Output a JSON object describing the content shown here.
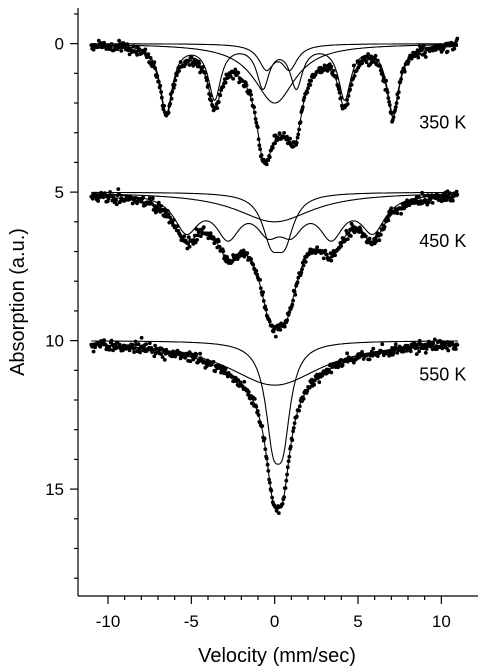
{
  "chart_data": {
    "type": "scatter",
    "xlabel": "Velocity (mm/sec)",
    "ylabel": "Absorption (a.u.)",
    "xlim": [
      -11.8,
      12.2
    ],
    "ylim": [
      18.6,
      -1.2
    ],
    "y_inverted": true,
    "x_ticks": [
      -10,
      -5,
      0,
      5,
      10
    ],
    "x_tick_labels": [
      "-10",
      "-5",
      "0",
      "5",
      "10"
    ],
    "y_ticks": [
      0,
      5,
      10,
      15
    ],
    "y_tick_labels": [
      "0",
      "5",
      "10",
      "15"
    ],
    "series": [
      {
        "name": "350 K",
        "label": "350 K",
        "label_anchor": [
          11.5,
          2.85
        ],
        "baseline": 0,
        "sextet": {
          "center": 0.3,
          "splits": [
            6.8,
            3.9,
            1.0
          ],
          "depths": [
            2.3,
            1.8,
            1.4
          ],
          "width": 0.45
        },
        "doublet": {
          "center": 0.2,
          "halfsplit": 0.7,
          "depth": 1.6,
          "width": 0.55
        },
        "extra_profile": {
          "center": 0.0,
          "depth": 2.0,
          "width": 1.5
        },
        "data_x_range": [
          -11,
          11
        ]
      },
      {
        "name": "450 K",
        "label": "450 K",
        "label_anchor": [
          11.5,
          6.85
        ],
        "baseline": 5,
        "sextet": {
          "center": 0.3,
          "splits": [
            5.6,
            3.1,
            0.7
          ],
          "depths": [
            1.2,
            1.3,
            1.0
          ],
          "width": 0.9
        },
        "doublet": {
          "center": 0.2,
          "halfsplit": 0.4,
          "depth": 2.8,
          "width": 0.65
        },
        "extra_profile": {
          "center": 0.0,
          "depth": 1.0,
          "width": 2.8
        },
        "data_x_range": [
          -11,
          11
        ]
      },
      {
        "name": "550 K",
        "label": "550 K",
        "label_anchor": [
          11.5,
          11.35
        ],
        "baseline": 10,
        "doublet": {
          "center": 0.2,
          "halfsplit": 0.3,
          "depth": 5.4,
          "width": 0.55
        },
        "extra_profile": {
          "center": 0.0,
          "depth": 1.5,
          "width": 3.5
        },
        "data_x_range": [
          -11,
          11
        ]
      }
    ]
  }
}
